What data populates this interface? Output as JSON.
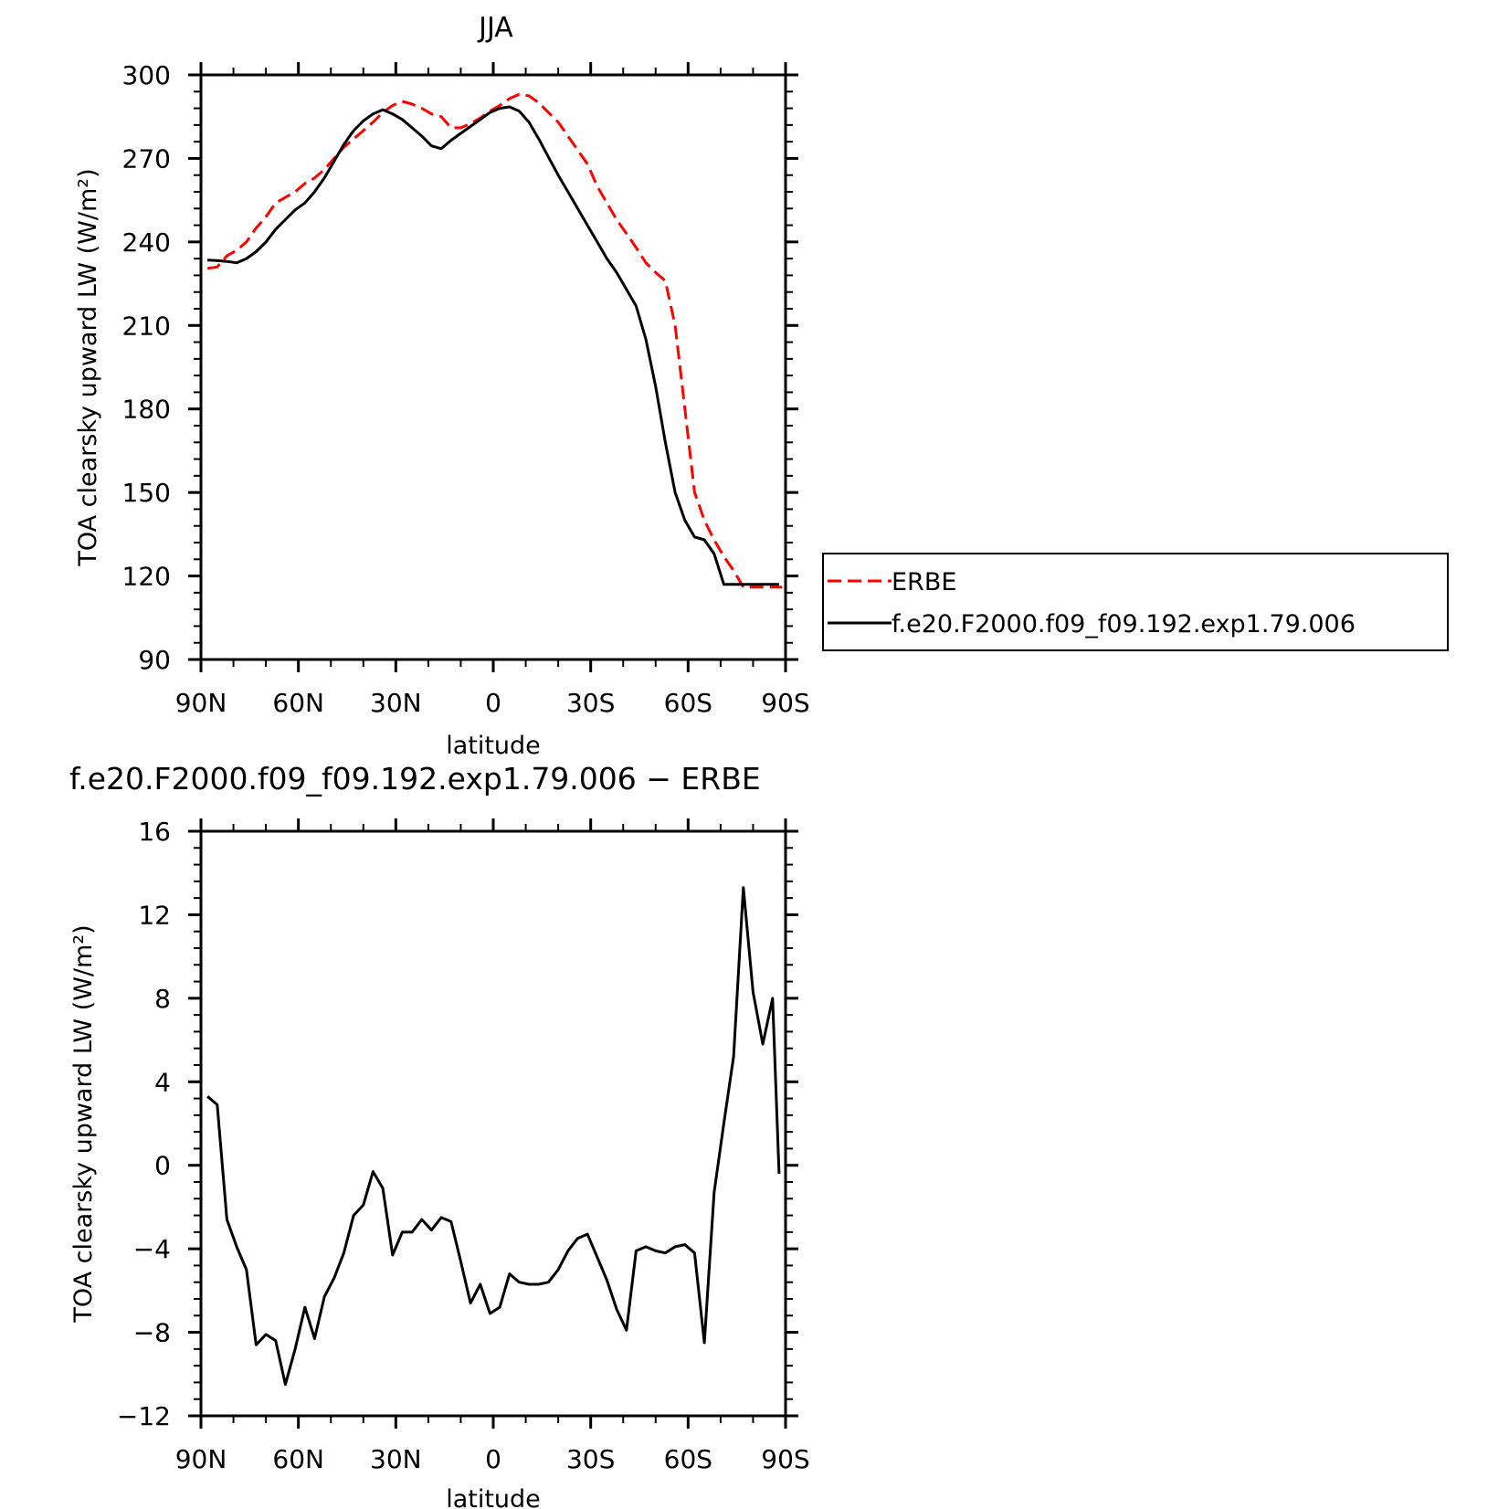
{
  "chart_data": [
    {
      "type": "line",
      "title": "JJA",
      "xlabel": "latitude",
      "ylabel": "TOA clearsky upward LW (W/m²)",
      "xlim": [
        90,
        -90
      ],
      "ylim": [
        90,
        300
      ],
      "xticks": [
        {
          "value": 90,
          "label": "90N"
        },
        {
          "value": 60,
          "label": "60N"
        },
        {
          "value": 30,
          "label": "30N"
        },
        {
          "value": 0,
          "label": "0"
        },
        {
          "value": -30,
          "label": "30S"
        },
        {
          "value": -60,
          "label": "60S"
        },
        {
          "value": -90,
          "label": "90S"
        }
      ],
      "yticks": [
        90,
        120,
        150,
        180,
        210,
        240,
        270,
        300
      ],
      "legend": {
        "placement": "right",
        "entries": [
          {
            "label": "ERBE",
            "color": "#ff0000",
            "dash": "dashed"
          },
          {
            "label": "f.e20.F2000.f09_f09.192.exp1.79.006",
            "color": "#000000",
            "dash": "solid"
          }
        ]
      },
      "series": [
        {
          "name": "ERBE",
          "color": "#ff0000",
          "dash": "dashed",
          "x": [
            88,
            85,
            82,
            79,
            76,
            73,
            70,
            67,
            64,
            61,
            58,
            55,
            52,
            49,
            46,
            43,
            40,
            37,
            34,
            31,
            28,
            25,
            22,
            19,
            16,
            13,
            10,
            7,
            4,
            1,
            -2,
            -5,
            -8,
            -11,
            -14,
            -17,
            -20,
            -23,
            -26,
            -29,
            -32,
            -35,
            -38,
            -41,
            -44,
            -47,
            -50,
            -53,
            -56,
            -59,
            -62,
            -65,
            -68,
            -71,
            -74,
            -77,
            -80,
            -83,
            -86,
            -89
          ],
          "values": [
            230.5,
            231,
            235,
            237,
            240,
            245,
            249,
            254,
            256,
            258,
            261,
            263,
            266,
            270,
            274,
            277,
            280,
            283,
            286.5,
            289,
            290.5,
            289.5,
            288,
            286,
            285,
            281,
            281,
            282.5,
            284.5,
            287,
            289,
            291.5,
            293,
            292.5,
            290,
            286.5,
            283,
            278,
            273,
            268,
            260,
            254,
            248,
            243,
            238,
            232.5,
            229,
            226,
            210,
            180,
            150,
            140,
            133,
            127,
            122,
            116,
            116,
            116,
            116,
            116
          ]
        },
        {
          "name": "f.e20.F2000.f09_f09.192.exp1.79.006",
          "color": "#000000",
          "dash": "solid",
          "x": [
            88,
            85,
            82,
            79,
            76,
            73,
            70,
            67,
            64,
            61,
            58,
            55,
            52,
            49,
            46,
            43,
            40,
            37,
            34,
            31,
            28,
            25,
            22,
            19,
            16,
            13,
            10,
            7,
            4,
            1,
            -2,
            -5,
            -8,
            -11,
            -14,
            -17,
            -20,
            -23,
            -26,
            -29,
            -32,
            -35,
            -38,
            -41,
            -44,
            -47,
            -50,
            -53,
            -56,
            -59,
            -62,
            -65,
            -68,
            -71,
            -74,
            -77,
            -80,
            -83,
            -86,
            -88
          ],
          "values": [
            233.5,
            233.3,
            233,
            232.5,
            234,
            236.5,
            240,
            244.5,
            248,
            251.5,
            254,
            258,
            263,
            269,
            275,
            280,
            283.5,
            286,
            287.5,
            286,
            284,
            281,
            278,
            274.5,
            273.5,
            276.5,
            279,
            281.5,
            284,
            286.5,
            288,
            288.5,
            287,
            283,
            277,
            270.5,
            264,
            258,
            252,
            246,
            240,
            234,
            229,
            223,
            217,
            205,
            188,
            168,
            150,
            140,
            134,
            133,
            128,
            117,
            117,
            117,
            117,
            117,
            117,
            117
          ]
        }
      ]
    },
    {
      "type": "line",
      "title": "f.e20.F2000.f09_f09.192.exp1.79.006 − ERBE",
      "xlabel": "latitude",
      "ylabel": "TOA clearsky upward LW (W/m²)",
      "xlim": [
        90,
        -90
      ],
      "ylim": [
        -12,
        16
      ],
      "xticks": [
        {
          "value": 90,
          "label": "90N"
        },
        {
          "value": 60,
          "label": "60N"
        },
        {
          "value": 30,
          "label": "30N"
        },
        {
          "value": 0,
          "label": "0"
        },
        {
          "value": -30,
          "label": "30S"
        },
        {
          "value": -60,
          "label": "60S"
        },
        {
          "value": -90,
          "label": "90S"
        }
      ],
      "yticks": [
        -12,
        -8,
        -4,
        0,
        4,
        8,
        12,
        16
      ],
      "series": [
        {
          "color": "#000000",
          "dash": "solid",
          "x": [
            88,
            85,
            82,
            79,
            76,
            73,
            70,
            67,
            64,
            61,
            58,
            55,
            52,
            49,
            46,
            43,
            40,
            37,
            34,
            31,
            28,
            25,
            22,
            19,
            16,
            13,
            10,
            7,
            4,
            1,
            -2,
            -5,
            -8,
            -11,
            -14,
            -17,
            -20,
            -23,
            -26,
            -29,
            -32,
            -35,
            -38,
            -41,
            -44,
            -47,
            -50,
            -53,
            -56,
            -59,
            -62,
            -65,
            -68,
            -71,
            -74,
            -77,
            -80,
            -83,
            -86,
            -88
          ],
          "values": [
            3.3,
            2.9,
            -2.6,
            -3.9,
            -5.0,
            -8.6,
            -8.1,
            -8.4,
            -10.5,
            -8.8,
            -6.8,
            -8.3,
            -6.3,
            -5.4,
            -4.2,
            -2.4,
            -1.9,
            -0.3,
            -1.1,
            -4.3,
            -3.2,
            -3.2,
            -2.6,
            -3.1,
            -2.5,
            -2.7,
            -4.6,
            -6.6,
            -5.7,
            -7.1,
            -6.8,
            -5.2,
            -5.6,
            -5.7,
            -5.7,
            -5.6,
            -5.0,
            -4.1,
            -3.5,
            -3.3,
            -4.4,
            -5.5,
            -6.9,
            -7.9,
            -4.1,
            -3.9,
            -4.1,
            -4.2,
            -3.9,
            -3.8,
            -4.2,
            -8.5,
            -1.3,
            2.0,
            5.2,
            13.3,
            8.3,
            5.8,
            8.0,
            -0.4
          ]
        }
      ]
    }
  ]
}
